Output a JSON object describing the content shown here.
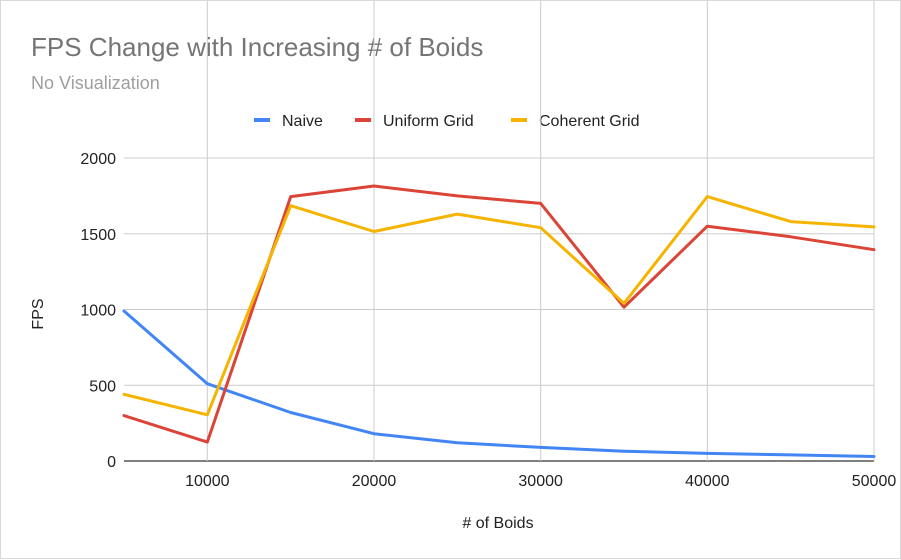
{
  "chart_data": {
    "type": "line",
    "title": "FPS Change with Increasing # of Boids",
    "subtitle": "No Visualization",
    "xlabel": "# of Boids",
    "ylabel": "FPS",
    "x": [
      5000,
      10000,
      15000,
      20000,
      25000,
      30000,
      35000,
      40000,
      45000,
      50000
    ],
    "xlim": [
      5000,
      50000
    ],
    "ylim": [
      0,
      2000
    ],
    "x_ticks": [
      10000,
      20000,
      30000,
      40000,
      50000
    ],
    "y_ticks": [
      0,
      500,
      1000,
      1500,
      2000
    ],
    "grid": true,
    "legend_position": "top",
    "series": [
      {
        "name": "Naive",
        "color": "#4285f4",
        "values": [
          990,
          510,
          320,
          180,
          120,
          90,
          65,
          50,
          40,
          30
        ]
      },
      {
        "name": "Uniform Grid",
        "color": "#db4437",
        "values": [
          300,
          125,
          1745,
          1815,
          1750,
          1700,
          1015,
          1550,
          1480,
          1395
        ]
      },
      {
        "name": "Coherent Grid",
        "color": "#f4b400",
        "values": [
          440,
          305,
          1685,
          1515,
          1630,
          1540,
          1040,
          1745,
          1580,
          1545
        ]
      }
    ]
  }
}
